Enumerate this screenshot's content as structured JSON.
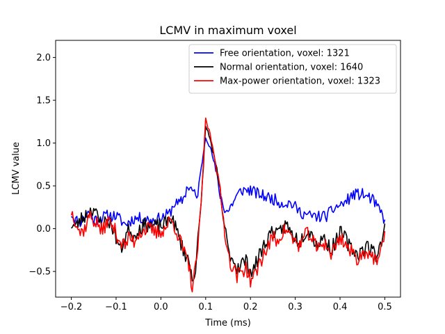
{
  "chart_data": {
    "type": "line",
    "title": "LCMV in maximum voxel",
    "xlabel": "Time (ms)",
    "ylabel": "LCMV value",
    "xlim": [
      -0.235,
      0.535
    ],
    "ylim": [
      -0.8,
      2.2
    ],
    "xticks": [
      -0.2,
      -0.1,
      0.0,
      0.1,
      0.2,
      0.3,
      0.4,
      0.5
    ],
    "xtick_labels": [
      "−0.2",
      "−0.1",
      "0.0",
      "0.1",
      "0.2",
      "0.3",
      "0.4",
      "0.5"
    ],
    "yticks": [
      -0.5,
      0.0,
      0.5,
      1.0,
      1.5,
      2.0
    ],
    "ytick_labels": [
      "−0.5",
      "0.0",
      "0.5",
      "1.0",
      "1.5",
      "2.0"
    ],
    "grid": false,
    "legend_position": "top-right",
    "series": [
      {
        "name": "Free orientation, voxel: 1321",
        "color": "#0000ff",
        "anchors": [
          [
            -0.2,
            0.18
          ],
          [
            -0.19,
            0.1
          ],
          [
            -0.18,
            0.08
          ],
          [
            -0.17,
            0.14
          ],
          [
            -0.16,
            0.2
          ],
          [
            -0.15,
            0.1
          ],
          [
            -0.14,
            0.12
          ],
          [
            -0.12,
            0.15
          ],
          [
            -0.1,
            0.15
          ],
          [
            -0.09,
            0.1
          ],
          [
            -0.08,
            0.05
          ],
          [
            -0.06,
            0.12
          ],
          [
            -0.04,
            0.12
          ],
          [
            -0.02,
            0.1
          ],
          [
            0.0,
            0.12
          ],
          [
            0.02,
            0.18
          ],
          [
            0.03,
            0.3
          ],
          [
            0.04,
            0.28
          ],
          [
            0.05,
            0.35
          ],
          [
            0.06,
            0.5
          ],
          [
            0.07,
            0.45
          ],
          [
            0.08,
            0.35
          ],
          [
            0.09,
            0.7
          ],
          [
            0.1,
            1.08
          ],
          [
            0.11,
            0.95
          ],
          [
            0.12,
            0.75
          ],
          [
            0.13,
            0.45
          ],
          [
            0.14,
            0.25
          ],
          [
            0.15,
            0.2
          ],
          [
            0.16,
            0.3
          ],
          [
            0.17,
            0.38
          ],
          [
            0.18,
            0.45
          ],
          [
            0.2,
            0.45
          ],
          [
            0.21,
            0.42
          ],
          [
            0.23,
            0.38
          ],
          [
            0.25,
            0.35
          ],
          [
            0.27,
            0.3
          ],
          [
            0.29,
            0.3
          ],
          [
            0.31,
            0.2
          ],
          [
            0.33,
            0.15
          ],
          [
            0.35,
            0.14
          ],
          [
            0.37,
            0.15
          ],
          [
            0.39,
            0.25
          ],
          [
            0.41,
            0.3
          ],
          [
            0.43,
            0.4
          ],
          [
            0.45,
            0.4
          ],
          [
            0.47,
            0.35
          ],
          [
            0.49,
            0.2
          ],
          [
            0.5,
            0.1
          ]
        ],
        "noise": 0.07,
        "seed": 11
      },
      {
        "name": "Normal orientation, voxel: 1640",
        "color": "#000000",
        "anchors": [
          [
            -0.2,
            0.05
          ],
          [
            -0.19,
            0.02
          ],
          [
            -0.18,
            0.1
          ],
          [
            -0.17,
            0.15
          ],
          [
            -0.16,
            0.2
          ],
          [
            -0.15,
            0.25
          ],
          [
            -0.14,
            0.1
          ],
          [
            -0.13,
            0.05
          ],
          [
            -0.12,
            0.1
          ],
          [
            -0.11,
            0.05
          ],
          [
            -0.1,
            -0.1
          ],
          [
            -0.09,
            -0.25
          ],
          [
            -0.08,
            -0.1
          ],
          [
            -0.07,
            0.0
          ],
          [
            -0.06,
            -0.1
          ],
          [
            -0.05,
            0.0
          ],
          [
            -0.03,
            0.05
          ],
          [
            -0.01,
            0.02
          ],
          [
            0.01,
            0.05
          ],
          [
            0.02,
            0.15
          ],
          [
            0.03,
            0.05
          ],
          [
            0.04,
            -0.1
          ],
          [
            0.05,
            -0.25
          ],
          [
            0.06,
            -0.35
          ],
          [
            0.07,
            -0.55
          ],
          [
            0.075,
            -0.55
          ],
          [
            0.08,
            -0.3
          ],
          [
            0.09,
            0.3
          ],
          [
            0.1,
            1.2
          ],
          [
            0.11,
            1.05
          ],
          [
            0.12,
            0.8
          ],
          [
            0.13,
            0.5
          ],
          [
            0.14,
            0.1
          ],
          [
            0.15,
            -0.25
          ],
          [
            0.16,
            -0.35
          ],
          [
            0.17,
            -0.45
          ],
          [
            0.18,
            -0.4
          ],
          [
            0.19,
            -0.38
          ],
          [
            0.2,
            -0.5
          ],
          [
            0.21,
            -0.45
          ],
          [
            0.22,
            -0.3
          ],
          [
            0.23,
            -0.2
          ],
          [
            0.24,
            -0.1
          ],
          [
            0.25,
            0.0
          ],
          [
            0.26,
            -0.1
          ],
          [
            0.27,
            0.0
          ],
          [
            0.28,
            0.05
          ],
          [
            0.29,
            -0.05
          ],
          [
            0.3,
            -0.1
          ],
          [
            0.31,
            -0.15
          ],
          [
            0.32,
            -0.05
          ],
          [
            0.33,
            0.0
          ],
          [
            0.34,
            -0.1
          ],
          [
            0.35,
            -0.2
          ],
          [
            0.36,
            -0.1
          ],
          [
            0.37,
            -0.15
          ],
          [
            0.38,
            -0.25
          ],
          [
            0.39,
            -0.15
          ],
          [
            0.4,
            -0.05
          ],
          [
            0.41,
            -0.1
          ],
          [
            0.42,
            -0.2
          ],
          [
            0.43,
            -0.25
          ],
          [
            0.44,
            -0.3
          ],
          [
            0.45,
            -0.25
          ],
          [
            0.46,
            -0.2
          ],
          [
            0.47,
            -0.25
          ],
          [
            0.48,
            -0.3
          ],
          [
            0.49,
            -0.2
          ],
          [
            0.5,
            0.05
          ]
        ],
        "noise": 0.09,
        "seed": 23
      },
      {
        "name": "Max-power orientation, voxel: 1323",
        "color": "#ff0000",
        "anchors": [
          [
            -0.2,
            0.2
          ],
          [
            -0.19,
            0.1
          ],
          [
            -0.18,
            -0.05
          ],
          [
            -0.17,
            0.0
          ],
          [
            -0.16,
            0.15
          ],
          [
            -0.15,
            0.1
          ],
          [
            -0.14,
            0.05
          ],
          [
            -0.13,
            -0.05
          ],
          [
            -0.12,
            0.1
          ],
          [
            -0.11,
            0.05
          ],
          [
            -0.1,
            -0.05
          ],
          [
            -0.09,
            -0.15
          ],
          [
            -0.08,
            -0.2
          ],
          [
            -0.07,
            -0.1
          ],
          [
            -0.06,
            -0.15
          ],
          [
            -0.05,
            -0.05
          ],
          [
            -0.03,
            0.0
          ],
          [
            -0.01,
            -0.05
          ],
          [
            0.01,
            0.0
          ],
          [
            0.02,
            0.1
          ],
          [
            0.03,
            0.05
          ],
          [
            0.04,
            -0.1
          ],
          [
            0.05,
            -0.25
          ],
          [
            0.06,
            -0.4
          ],
          [
            0.065,
            -0.5
          ],
          [
            0.07,
            -0.7
          ],
          [
            0.075,
            -0.55
          ],
          [
            0.08,
            -0.35
          ],
          [
            0.09,
            0.3
          ],
          [
            0.1,
            1.28
          ],
          [
            0.11,
            1.1
          ],
          [
            0.12,
            0.85
          ],
          [
            0.13,
            0.5
          ],
          [
            0.14,
            0.1
          ],
          [
            0.15,
            -0.3
          ],
          [
            0.16,
            -0.45
          ],
          [
            0.17,
            -0.55
          ],
          [
            0.18,
            -0.5
          ],
          [
            0.19,
            -0.45
          ],
          [
            0.2,
            -0.6
          ],
          [
            0.21,
            -0.55
          ],
          [
            0.22,
            -0.4
          ],
          [
            0.23,
            -0.3
          ],
          [
            0.24,
            -0.2
          ],
          [
            0.25,
            -0.1
          ],
          [
            0.26,
            -0.15
          ],
          [
            0.27,
            -0.05
          ],
          [
            0.28,
            0.0
          ],
          [
            0.29,
            -0.1
          ],
          [
            0.3,
            -0.15
          ],
          [
            0.31,
            -0.2
          ],
          [
            0.32,
            -0.1
          ],
          [
            0.33,
            -0.05
          ],
          [
            0.34,
            -0.15
          ],
          [
            0.35,
            -0.25
          ],
          [
            0.36,
            -0.15
          ],
          [
            0.37,
            -0.2
          ],
          [
            0.38,
            -0.3
          ],
          [
            0.39,
            -0.2
          ],
          [
            0.4,
            -0.1
          ],
          [
            0.41,
            -0.15
          ],
          [
            0.42,
            -0.25
          ],
          [
            0.43,
            -0.3
          ],
          [
            0.44,
            -0.35
          ],
          [
            0.45,
            -0.3
          ],
          [
            0.46,
            -0.25
          ],
          [
            0.47,
            -0.3
          ],
          [
            0.48,
            -0.4
          ],
          [
            0.49,
            -0.3
          ],
          [
            0.5,
            -0.1
          ]
        ],
        "noise": 0.09,
        "seed": 37
      }
    ]
  }
}
